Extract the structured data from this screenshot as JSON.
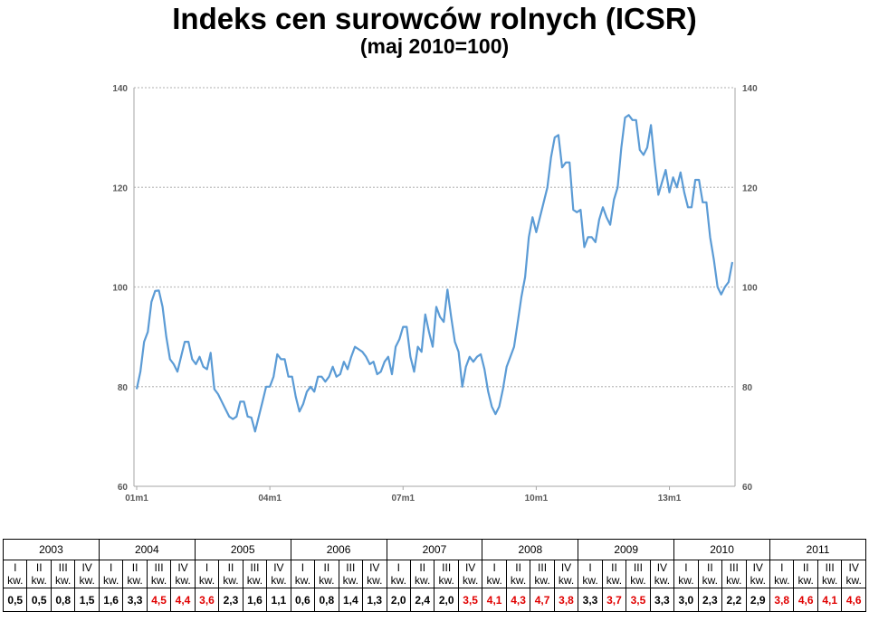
{
  "title": "Indeks cen surowców rolnych (ICSR)",
  "subtitle": "(maj 2010=100)",
  "chart_data": {
    "type": "line",
    "title": "Indeks cen surowców rolnych (ICSR)",
    "subtitle": "(maj 2010=100)",
    "ylim": [
      60,
      140
    ],
    "y_ticks": [
      "60",
      "80",
      "100",
      "120",
      "140"
    ],
    "x_ticks": [
      "01m1",
      "04m1",
      "07m1",
      "10m1",
      "13m1"
    ],
    "grid": true,
    "legend": "none",
    "line_color": "#5b9bd5",
    "series": [
      {
        "values": [
          79.5,
          83,
          89,
          91,
          97,
          99.2,
          99.3,
          96,
          90,
          85.5,
          84.5,
          83,
          86,
          89,
          89,
          85.5,
          84.5,
          86,
          84,
          83.5,
          86.8,
          79.5,
          78.5,
          77,
          75.5,
          74,
          73.5,
          74,
          77,
          77,
          74,
          73.8,
          71,
          74,
          77,
          80,
          80,
          82,
          86.5,
          85.5,
          85.5,
          82,
          82,
          78,
          75,
          76.5,
          79,
          80,
          79,
          82,
          82,
          81,
          82,
          84,
          82,
          82.5,
          85,
          83.5,
          86,
          88,
          87.5,
          87,
          86,
          84.5,
          85,
          82.5,
          83,
          85,
          86,
          82.5,
          88,
          89.5,
          92,
          92,
          86,
          83,
          88,
          87,
          94.5,
          91,
          88,
          96,
          94,
          93,
          99.5,
          94,
          89,
          87,
          80,
          84,
          86,
          85,
          86,
          86.5,
          83.5,
          79,
          76,
          74.5,
          76,
          79.5,
          84,
          86,
          88,
          93,
          98,
          102,
          110,
          114,
          111,
          114,
          117,
          120,
          126,
          130,
          130.5,
          124,
          125,
          125,
          115.5,
          115,
          115.5,
          108,
          110,
          110,
          109,
          113.5,
          116,
          114,
          112.5,
          117.5,
          120,
          128,
          134,
          134.5,
          133.5,
          133.5,
          127.5,
          126.5,
          128,
          132.5,
          125,
          118.5,
          121,
          123.5,
          119,
          122,
          120,
          123,
          119,
          116,
          116,
          121.5,
          121.5,
          117,
          117,
          110,
          105.5,
          100,
          98.5,
          100,
          101,
          105
        ]
      }
    ],
    "quarter_table": {
      "years": [
        "2003",
        "2004",
        "2005",
        "2006",
        "2007",
        "2008",
        "2009",
        "2010",
        "2011"
      ],
      "quarters": [
        "I kw.",
        "II kw.",
        "III kw.",
        "IV kw."
      ],
      "values": [
        "0,5",
        "0,5",
        "0,8",
        "1,5",
        "1,6",
        "3,3",
        "4,5",
        "4,4",
        "3,6",
        "2,3",
        "1,6",
        "1,1",
        "0,6",
        "0,8",
        "1,4",
        "1,3",
        "2,0",
        "2,4",
        "2,0",
        "3,5",
        "4,1",
        "4,3",
        "4,7",
        "3,8",
        "3,3",
        "3,7",
        "3,5",
        "3,3",
        "3,0",
        "2,3",
        "2,2",
        "2,9",
        "3,8",
        "4,6",
        "4,1",
        "4,6"
      ],
      "highlighted": [
        false,
        false,
        false,
        false,
        false,
        false,
        true,
        true,
        true,
        false,
        false,
        false,
        false,
        false,
        false,
        false,
        false,
        false,
        false,
        true,
        true,
        true,
        true,
        true,
        false,
        true,
        true,
        false,
        false,
        false,
        false,
        false,
        true,
        true,
        true,
        true
      ]
    }
  },
  "colors": {
    "line": "#5b9bd5",
    "grid": "#bfbfbf",
    "highlight": "#e00000"
  }
}
